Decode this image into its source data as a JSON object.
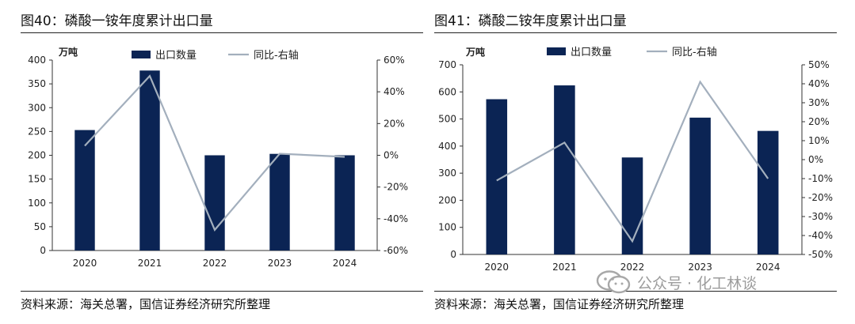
{
  "figures": [
    {
      "title": "图40：磷酸一铵年度累计出口量",
      "source": "资料来源：海关总署，国信证券经济研究所整理",
      "chart_data": {
        "type": "bar",
        "categories": [
          "2020",
          "2021",
          "2022",
          "2023",
          "2024"
        ],
        "series": [
          {
            "name": "出口数量",
            "type": "bar",
            "axis": "left",
            "color": "#0b2454",
            "values": [
              253,
              378,
              200,
              203,
              200
            ]
          },
          {
            "name": "同比-右轴",
            "type": "line",
            "axis": "right",
            "color": "#a3afbd",
            "values": [
              6,
              50,
              -47,
              1,
              -1
            ]
          }
        ],
        "unit_label": "万吨",
        "y_left": {
          "min": 0,
          "max": 400,
          "step": 50,
          "ticks": [
            "0",
            "50",
            "100",
            "150",
            "200",
            "250",
            "300",
            "350",
            "400"
          ]
        },
        "y_right": {
          "min": -60,
          "max": 60,
          "step": 20,
          "ticks": [
            "-60%",
            "-40%",
            "-20%",
            "0%",
            "20%",
            "40%",
            "60%"
          ]
        },
        "grid": false,
        "legend": "top-center"
      }
    },
    {
      "title": "图41：磷酸二铵年度累计出口量",
      "source": "资料来源：海关总署，国信证券经济研究所整理",
      "chart_data": {
        "type": "bar",
        "categories": [
          "2020",
          "2021",
          "2022",
          "2023",
          "2024"
        ],
        "series": [
          {
            "name": "出口数量",
            "type": "bar",
            "axis": "left",
            "color": "#0b2454",
            "values": [
              573,
              624,
              358,
              505,
              456
            ]
          },
          {
            "name": "同比-右轴",
            "type": "line",
            "axis": "right",
            "color": "#a3afbd",
            "values": [
              -11,
              9,
              -43,
              41,
              -10
            ]
          }
        ],
        "unit_label": "万吨",
        "y_left": {
          "min": 0,
          "max": 700,
          "step": 100,
          "ticks": [
            "0",
            "100",
            "200",
            "300",
            "400",
            "500",
            "600",
            "700"
          ]
        },
        "y_right": {
          "min": -50,
          "max": 50,
          "step": 10,
          "ticks": [
            "-50%",
            "-40%",
            "-30%",
            "-20%",
            "-10%",
            "0%",
            "10%",
            "20%",
            "30%",
            "40%",
            "50%"
          ]
        },
        "grid": false,
        "legend": "top-center"
      }
    }
  ],
  "watermark": {
    "text": "公众号 · 化工林谈",
    "icon": "wechat-icon"
  }
}
